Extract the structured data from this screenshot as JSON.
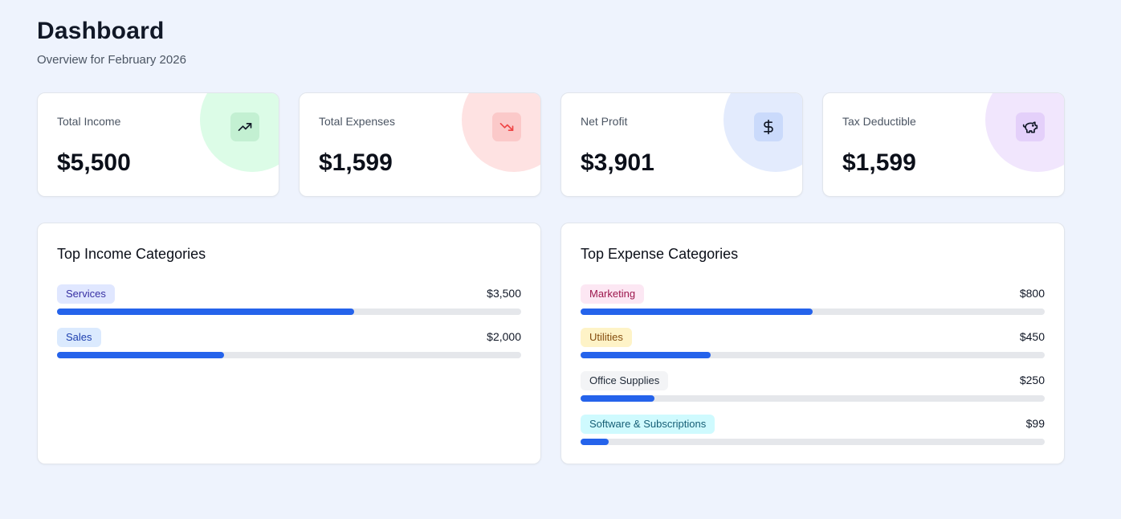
{
  "header": {
    "title": "Dashboard",
    "subtitle": "Overview for February 2026"
  },
  "stats": [
    {
      "label": "Total Income",
      "value": "$5,500",
      "icon": "trending-up-icon",
      "accent": "#dcfce7",
      "icon_bg": "#c3f0d2"
    },
    {
      "label": "Total Expenses",
      "value": "$1,599",
      "icon": "trending-down-icon",
      "accent": "#fee2e2",
      "icon_bg": "#fbc9c9"
    },
    {
      "label": "Net Profit",
      "value": "$3,901",
      "icon": "dollar-icon",
      "accent": "#e3ebfd",
      "icon_bg": "#cadafb"
    },
    {
      "label": "Tax Deductible",
      "value": "$1,599",
      "icon": "piggy-bank-icon",
      "accent": "#f1e6fd",
      "icon_bg": "#e4d0fa"
    }
  ],
  "income_panel": {
    "title": "Top Income Categories",
    "items": [
      {
        "label": "Services",
        "amount": "$3,500",
        "share": 0.64,
        "tag_bg": "#e0e7ff",
        "tag_color": "#3730a3"
      },
      {
        "label": "Sales",
        "amount": "$2,000",
        "share": 0.36,
        "tag_bg": "#dbeafe",
        "tag_color": "#1e40af"
      }
    ]
  },
  "expense_panel": {
    "title": "Top Expense Categories",
    "items": [
      {
        "label": "Marketing",
        "amount": "$800",
        "share": 0.5,
        "tag_bg": "#fce7f3",
        "tag_color": "#9d174d"
      },
      {
        "label": "Utilities",
        "amount": "$450",
        "share": 0.28,
        "tag_bg": "#fef3c7",
        "tag_color": "#854d0e"
      },
      {
        "label": "Office Supplies",
        "amount": "$250",
        "share": 0.16,
        "tag_bg": "#f3f4f6",
        "tag_color": "#1f2937"
      },
      {
        "label": "Software & Subscriptions",
        "amount": "$99",
        "share": 0.06,
        "tag_bg": "#cffafe",
        "tag_color": "#155e75"
      }
    ]
  },
  "colors": {
    "bar_fill": "#2563eb",
    "bar_track": "#e5e7eb"
  }
}
